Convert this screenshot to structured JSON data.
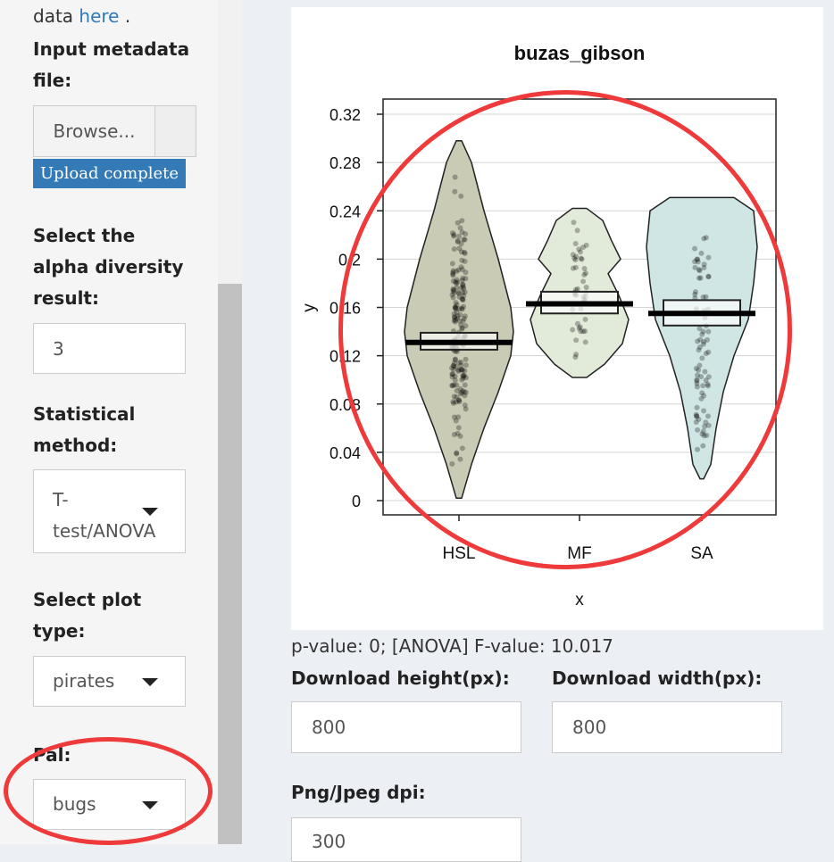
{
  "sidebar": {
    "intro_prefix": "data ",
    "intro_link": "here",
    "intro_suffix": " .",
    "metadata_label": "Input metadata file:",
    "browse_label": "Browse...",
    "upload_status": "Upload complete",
    "alpha_label": "Select the alpha diversity result:",
    "alpha_value": "3",
    "method_label": "Statistical method:",
    "method_value": "T-test/ANOVA",
    "plot_type_label": "Select plot type:",
    "plot_type_value": "pirates",
    "pal_label": "Pal:",
    "pal_value": "bugs"
  },
  "result": {
    "stats_text": "p-value: 0; [ANOVA] F-value: 10.017",
    "download_height_label": "Download height(px):",
    "download_height_value": "800",
    "download_width_label": "Download width(px):",
    "download_width_value": "800",
    "dpi_label": "Png/Jpeg dpi:",
    "dpi_value": "300"
  },
  "colors": {
    "annotation_ring": "#ee3a3a",
    "upload_bar": "#337ab7",
    "link": "#2f7ab9"
  },
  "chart_data": {
    "type": "pirateplot",
    "title": "buzas_gibson",
    "xlabel": "x",
    "ylabel": "y",
    "ylim": [
      0,
      0.32
    ],
    "yticks": [
      "0",
      "0.04",
      "0.08",
      "0.12",
      "0.16",
      "0.2",
      "0.24",
      "0.28",
      "0.32"
    ],
    "categories": [
      "HSL",
      "MF",
      "SA"
    ],
    "means": [
      0.131,
      0.163,
      0.155
    ],
    "ci_low": [
      0.125,
      0.155,
      0.145
    ],
    "ci_high": [
      0.139,
      0.173,
      0.166
    ],
    "ranges": [
      [
        0.002,
        0.298
      ],
      [
        0.102,
        0.242
      ],
      [
        0.018,
        0.251
      ]
    ],
    "fill_colors": [
      "#c9cbb5",
      "#e2ebd9",
      "#d0e6e4"
    ],
    "grid": true
  }
}
